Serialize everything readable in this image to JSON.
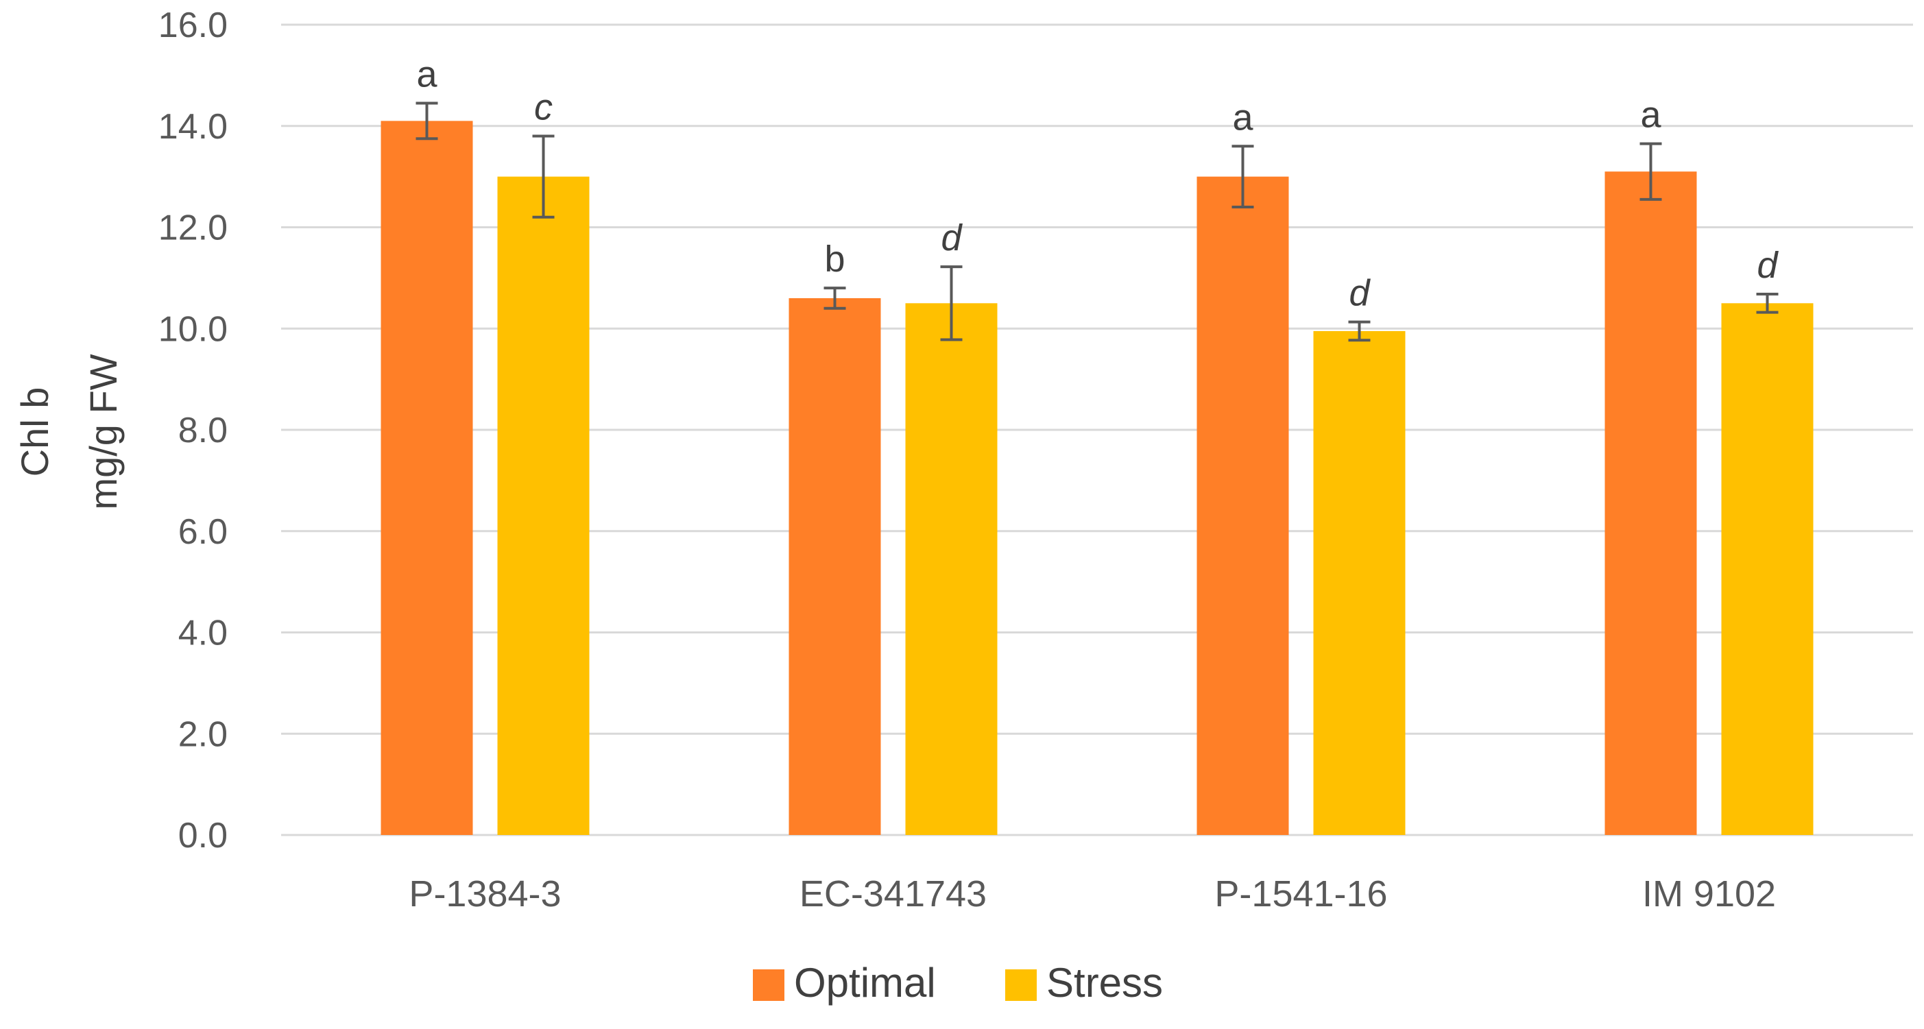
{
  "chart_data": {
    "type": "bar",
    "title": "",
    "xlabel": "",
    "ylabel": [
      "Chl b",
      "mg/g FW"
    ],
    "ylim": [
      0,
      16
    ],
    "ytick_step": 2,
    "ytick_labels": [
      "0.0",
      "2.0",
      "4.0",
      "6.0",
      "8.0",
      "10.0",
      "12.0",
      "14.0",
      "16.0"
    ],
    "grid": true,
    "legend_position": "bottom",
    "categories": [
      "P-1384-3",
      "EC-341743",
      "P-1541-16",
      "IM 9102"
    ],
    "series": [
      {
        "name": "Optimal",
        "color": "#FF7F27",
        "values": [
          14.1,
          10.6,
          13.0,
          13.1
        ],
        "errors": [
          0.35,
          0.2,
          0.6,
          0.55
        ],
        "labels": [
          "a",
          "b",
          "a",
          "a"
        ],
        "label_italic": false
      },
      {
        "name": "Stress",
        "color": "#FFC000",
        "values": [
          13.0,
          10.5,
          9.95,
          10.5
        ],
        "errors": [
          0.8,
          0.72,
          0.18,
          0.18
        ],
        "labels": [
          "c",
          "d",
          "d",
          "d"
        ],
        "label_italic": true
      }
    ]
  }
}
